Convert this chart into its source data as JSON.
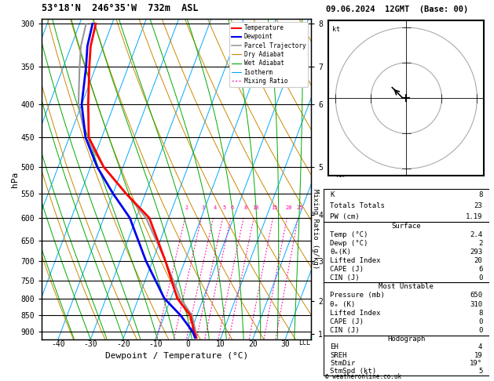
{
  "title_left": "53°18'N  246°35'W  732m  ASL",
  "title_right": "09.06.2024  12GMT  (Base: 00)",
  "xlabel": "Dewpoint / Temperature (°C)",
  "ylabel_left": "hPa",
  "pressure_levels": [
    300,
    350,
    400,
    450,
    500,
    550,
    600,
    650,
    700,
    750,
    800,
    850,
    900
  ],
  "xtick_temps": [
    -40,
    -30,
    -20,
    -10,
    0,
    10,
    20,
    30
  ],
  "km_ticks": [
    1,
    2,
    3,
    4,
    5,
    6,
    7,
    8
  ],
  "km_pressures": [
    908,
    808,
    700,
    594,
    500,
    400,
    350,
    300
  ],
  "mixing_ratio_values": [
    2,
    3,
    4,
    5,
    6,
    8,
    10,
    15,
    20,
    25
  ],
  "temp_profile_T": [
    2.4,
    1.0,
    -2.0,
    -8.0,
    -16.0,
    -26.0,
    -36.0,
    -46.0,
    -54.0,
    -58.0,
    -62.0,
    -64.0,
    -65.0
  ],
  "temp_profile_P": [
    920,
    900,
    850,
    800,
    700,
    600,
    550,
    500,
    450,
    400,
    350,
    325,
    300
  ],
  "dewp_profile_T": [
    2.0,
    0.5,
    -5.0,
    -12.0,
    -22.0,
    -32.0,
    -40.0,
    -48.0,
    -55.0,
    -60.0,
    -63.0,
    -65.0,
    -66.0
  ],
  "dewp_profile_P": [
    920,
    900,
    850,
    800,
    700,
    600,
    550,
    500,
    450,
    400,
    350,
    325,
    300
  ],
  "parcel_T": [
    2.4,
    1.5,
    -1.5,
    -7.0,
    -16.0,
    -27.0,
    -36.0,
    -46.0,
    -55.0,
    -61.0,
    -65.0,
    -67.0,
    -68.0
  ],
  "parcel_P": [
    920,
    900,
    850,
    800,
    700,
    600,
    550,
    500,
    450,
    400,
    350,
    325,
    300
  ],
  "color_temp": "#ff0000",
  "color_dewp": "#0000ee",
  "color_parcel": "#999999",
  "color_dry_adiabat": "#cc8800",
  "color_wet_adiabat": "#00aa00",
  "color_isotherm": "#00aaff",
  "color_mixing": "#ff00aa",
  "background": "#ffffff",
  "lcl_pressure": 920,
  "pmin": 295,
  "pmax": 925,
  "T_xlim_min": -45,
  "T_xlim_max": 38,
  "skew_factor": 32.5,
  "stats": {
    "K": 8,
    "Totals_Totals": 23,
    "PW_cm": "1.19",
    "Surface_Temp": "2.4",
    "Surface_Dewp": "2",
    "Surface_theta_e": "293",
    "Surface_LI": "20",
    "Surface_CAPE": "6",
    "Surface_CIN": "0",
    "MU_Pressure": "650",
    "MU_theta_e": "310",
    "MU_LI": "8",
    "MU_CAPE": "0",
    "MU_CIN": "0",
    "EH": "4",
    "SREH": "19",
    "StmDir": "19°",
    "StmSpd_kt": "5"
  }
}
